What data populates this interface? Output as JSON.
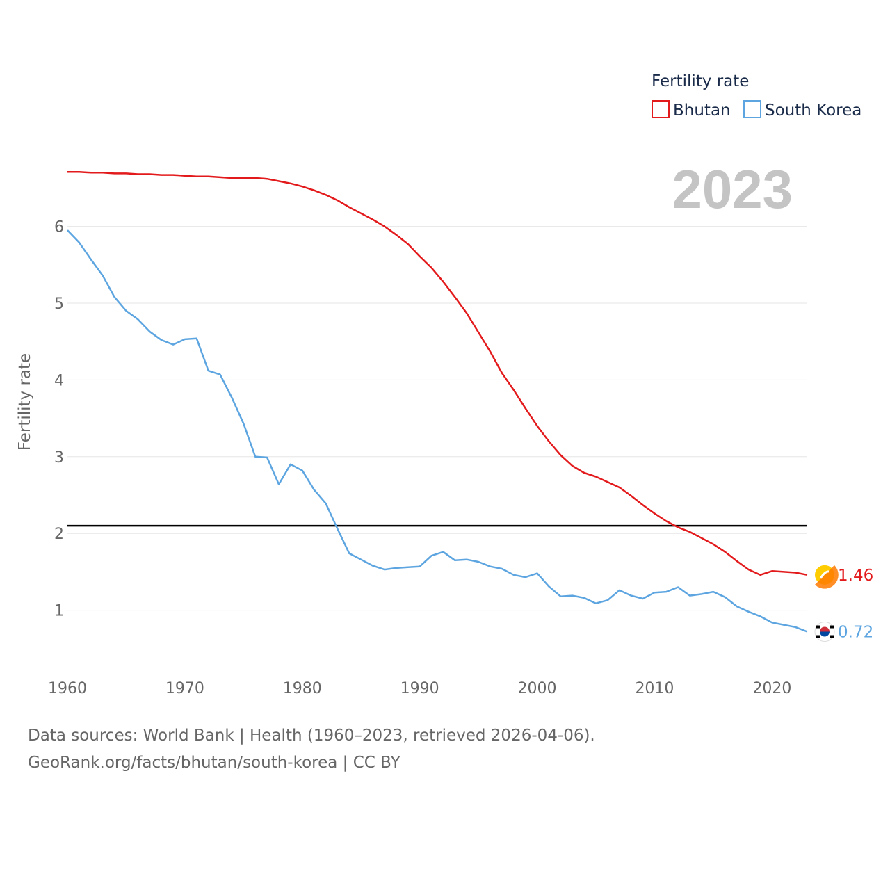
{
  "chart_data": {
    "type": "line",
    "title": "Fertility rate",
    "year_label": "2023",
    "ylabel": "Fertility rate",
    "xlabel": "",
    "xlim": [
      1960,
      2023
    ],
    "ylim": [
      0.35,
      7.0
    ],
    "x_ticks": [
      1960,
      1970,
      1980,
      1990,
      2000,
      2010,
      2020
    ],
    "y_ticks": [
      1,
      2,
      3,
      4,
      5,
      6
    ],
    "reference_line": {
      "y": 2.1
    },
    "x": [
      1960,
      1961,
      1962,
      1963,
      1964,
      1965,
      1966,
      1967,
      1968,
      1969,
      1970,
      1971,
      1972,
      1973,
      1974,
      1975,
      1976,
      1977,
      1978,
      1979,
      1980,
      1981,
      1982,
      1983,
      1984,
      1985,
      1986,
      1987,
      1988,
      1989,
      1990,
      1991,
      1992,
      1993,
      1994,
      1995,
      1996,
      1997,
      1998,
      1999,
      2000,
      2001,
      2002,
      2003,
      2004,
      2005,
      2006,
      2007,
      2008,
      2009,
      2010,
      2011,
      2012,
      2013,
      2014,
      2015,
      2016,
      2017,
      2018,
      2019,
      2020,
      2021,
      2022,
      2023
    ],
    "series": [
      {
        "name": "Bhutan",
        "color": "#e31a1c",
        "end_value_label": "1.46",
        "flag_icon": "bhutan-flag-icon",
        "values": [
          6.71,
          6.71,
          6.7,
          6.7,
          6.69,
          6.69,
          6.68,
          6.68,
          6.67,
          6.67,
          6.66,
          6.65,
          6.65,
          6.64,
          6.63,
          6.63,
          6.63,
          6.62,
          6.59,
          6.56,
          6.52,
          6.47,
          6.41,
          6.34,
          6.25,
          6.17,
          6.09,
          6.0,
          5.89,
          5.77,
          5.61,
          5.46,
          5.28,
          5.08,
          4.87,
          4.62,
          4.37,
          4.09,
          3.87,
          3.63,
          3.4,
          3.2,
          3.02,
          2.88,
          2.79,
          2.74,
          2.67,
          2.6,
          2.49,
          2.37,
          2.26,
          2.16,
          2.08,
          2.02,
          1.94,
          1.86,
          1.76,
          1.64,
          1.53,
          1.46,
          1.51,
          1.5,
          1.49,
          1.46
        ]
      },
      {
        "name": "South Korea",
        "color": "#5da5e0",
        "end_value_label": "0.72",
        "flag_icon": "south-korea-flag-icon",
        "values": [
          5.95,
          5.79,
          5.57,
          5.36,
          5.08,
          4.9,
          4.79,
          4.63,
          4.52,
          4.46,
          4.53,
          4.54,
          4.12,
          4.07,
          3.77,
          3.43,
          3.0,
          2.99,
          2.64,
          2.9,
          2.82,
          2.57,
          2.39,
          2.06,
          1.74,
          1.66,
          1.58,
          1.53,
          1.55,
          1.56,
          1.57,
          1.71,
          1.76,
          1.65,
          1.66,
          1.63,
          1.57,
          1.54,
          1.46,
          1.43,
          1.48,
          1.31,
          1.18,
          1.19,
          1.16,
          1.09,
          1.13,
          1.26,
          1.19,
          1.15,
          1.23,
          1.24,
          1.3,
          1.19,
          1.21,
          1.24,
          1.17,
          1.05,
          0.98,
          0.92,
          0.84,
          0.81,
          0.78,
          0.72
        ]
      }
    ]
  },
  "footer": {
    "source_line": "Data sources: World Bank | Health (1960–2023, retrieved 2026-04-06).",
    "url_line": "GeoRank.org/facts/bhutan/south-korea | CC BY"
  }
}
